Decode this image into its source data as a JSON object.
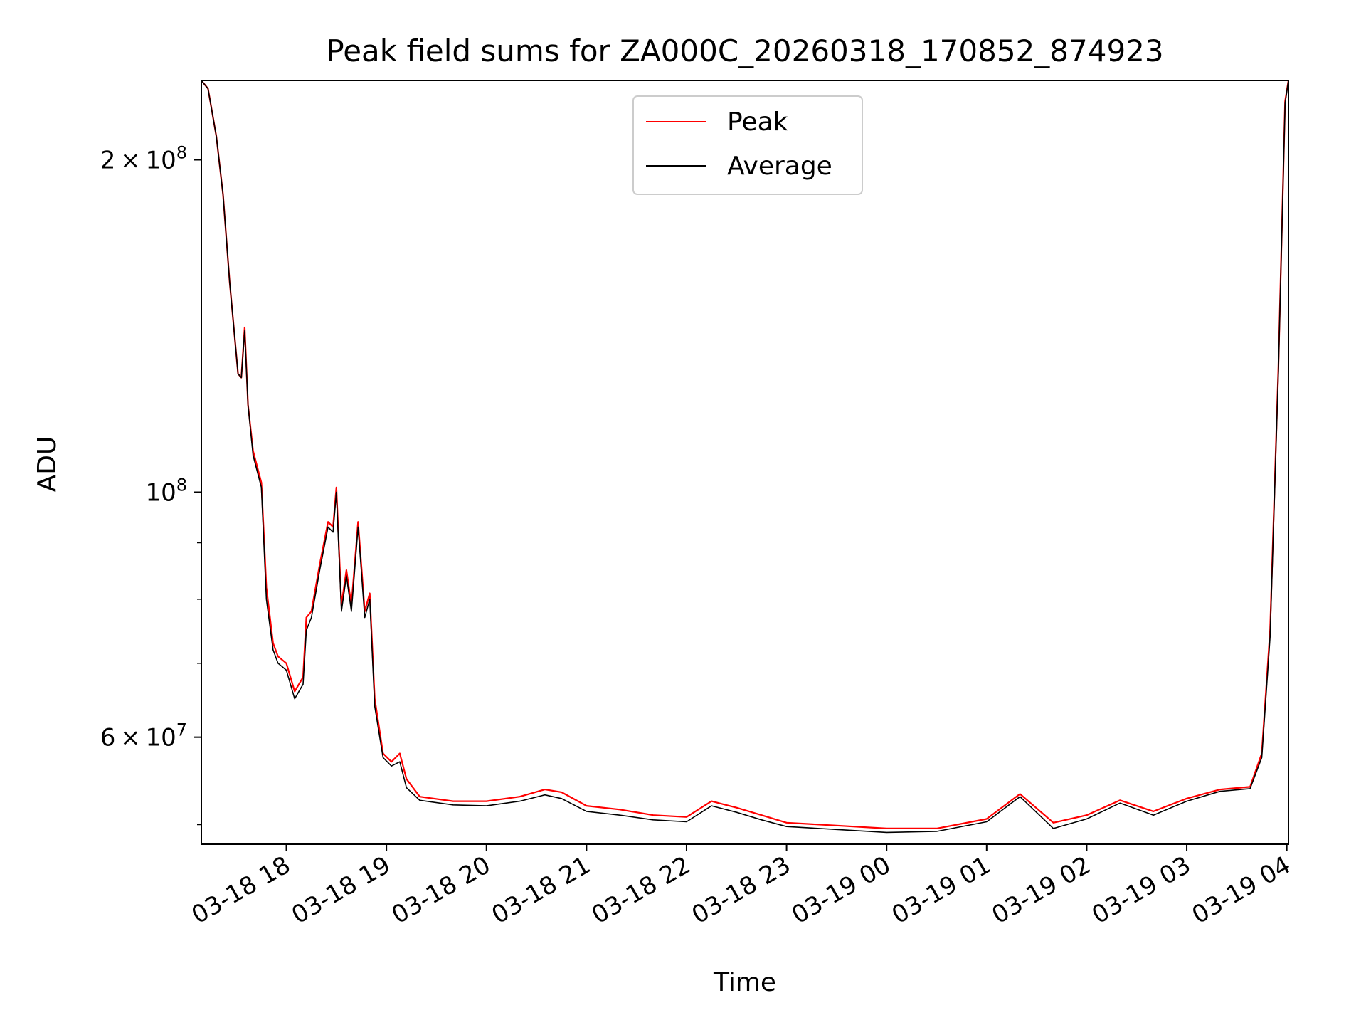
{
  "chart_data": {
    "type": "line",
    "title": "Peak field sums for ZA000C_20260318_170852_874923",
    "xlabel": "Time",
    "ylabel": "ADU",
    "yscale": "log",
    "xlim": [
      "2026-03-18 17:09",
      "2026-03-19 04:01"
    ],
    "ylim": [
      48000000,
      236000000
    ],
    "grid": true,
    "legend": "upper center",
    "x_ticks": [
      {
        "t": "2026-03-18 18:00",
        "label": "03-18 18"
      },
      {
        "t": "2026-03-18 19:00",
        "label": "03-18 19"
      },
      {
        "t": "2026-03-18 20:00",
        "label": "03-18 20"
      },
      {
        "t": "2026-03-18 21:00",
        "label": "03-18 21"
      },
      {
        "t": "2026-03-18 22:00",
        "label": "03-18 22"
      },
      {
        "t": "2026-03-18 23:00",
        "label": "03-18 23"
      },
      {
        "t": "2026-03-19 00:00",
        "label": "03-19 00"
      },
      {
        "t": "2026-03-19 01:00",
        "label": "03-19 01"
      },
      {
        "t": "2026-03-19 02:00",
        "label": "03-19 02"
      },
      {
        "t": "2026-03-19 03:00",
        "label": "03-19 03"
      },
      {
        "t": "2026-03-19 04:00",
        "label": "03-19 04"
      }
    ],
    "y_ticks": [
      {
        "value": 200000000,
        "mant": "2",
        "exp": "8"
      },
      {
        "value": 100000000,
        "mant": "",
        "exp": "8"
      },
      {
        "value": 60000000,
        "mant": "6",
        "exp": "7"
      }
    ],
    "y_minor_ticks": [
      50000000,
      70000000,
      80000000,
      90000000
    ],
    "series": [
      {
        "name": "Peak",
        "color": "#ff0000",
        "points": [
          [
            "2026-03-18 17:09",
            236000000
          ],
          [
            "2026-03-18 17:13",
            232000000
          ],
          [
            "2026-03-18 17:18",
            210000000
          ],
          [
            "2026-03-18 17:22",
            186000000
          ],
          [
            "2026-03-18 17:26",
            155000000
          ],
          [
            "2026-03-18 17:31",
            128000000
          ],
          [
            "2026-03-18 17:33",
            127000000
          ],
          [
            "2026-03-18 17:35",
            141000000
          ],
          [
            "2026-03-18 17:37",
            120000000
          ],
          [
            "2026-03-18 17:40",
            109000000
          ],
          [
            "2026-03-18 17:45",
            102000000
          ],
          [
            "2026-03-18 17:48",
            82000000
          ],
          [
            "2026-03-18 17:52",
            73000000
          ],
          [
            "2026-03-18 17:55",
            71000000
          ],
          [
            "2026-03-18 18:00",
            70000000
          ],
          [
            "2026-03-18 18:05",
            66000000
          ],
          [
            "2026-03-18 18:10",
            68000000
          ],
          [
            "2026-03-18 18:12",
            77000000
          ],
          [
            "2026-03-18 18:15",
            78000000
          ],
          [
            "2026-03-18 18:20",
            86000000
          ],
          [
            "2026-03-18 18:25",
            94000000
          ],
          [
            "2026-03-18 18:28",
            93000000
          ],
          [
            "2026-03-18 18:30",
            101000000
          ],
          [
            "2026-03-18 18:33",
            79000000
          ],
          [
            "2026-03-18 18:36",
            85000000
          ],
          [
            "2026-03-18 18:39",
            79000000
          ],
          [
            "2026-03-18 18:43",
            94000000
          ],
          [
            "2026-03-18 18:47",
            78000000
          ],
          [
            "2026-03-18 18:50",
            81000000
          ],
          [
            "2026-03-18 18:53",
            65000000
          ],
          [
            "2026-03-18 18:58",
            58000000
          ],
          [
            "2026-03-18 19:03",
            57000000
          ],
          [
            "2026-03-18 19:08",
            58000000
          ],
          [
            "2026-03-18 19:12",
            55000000
          ],
          [
            "2026-03-18 19:20",
            53000000
          ],
          [
            "2026-03-18 19:40",
            52500000
          ],
          [
            "2026-03-18 20:00",
            52500000
          ],
          [
            "2026-03-18 20:20",
            53000000
          ],
          [
            "2026-03-18 20:35",
            53800000
          ],
          [
            "2026-03-18 20:45",
            53500000
          ],
          [
            "2026-03-18 21:00",
            52000000
          ],
          [
            "2026-03-18 21:20",
            51600000
          ],
          [
            "2026-03-18 21:40",
            51000000
          ],
          [
            "2026-03-18 22:00",
            50800000
          ],
          [
            "2026-03-18 22:15",
            52500000
          ],
          [
            "2026-03-18 22:30",
            51800000
          ],
          [
            "2026-03-18 22:45",
            51000000
          ],
          [
            "2026-03-18 23:00",
            50200000
          ],
          [
            "2026-03-18 23:30",
            49900000
          ],
          [
            "2026-03-19 00:00",
            49600000
          ],
          [
            "2026-03-19 00:30",
            49600000
          ],
          [
            "2026-03-19 01:00",
            50600000
          ],
          [
            "2026-03-19 01:20",
            53300000
          ],
          [
            "2026-03-19 01:40",
            50200000
          ],
          [
            "2026-03-19 02:00",
            51000000
          ],
          [
            "2026-03-19 02:20",
            52600000
          ],
          [
            "2026-03-19 02:40",
            51400000
          ],
          [
            "2026-03-19 03:00",
            52800000
          ],
          [
            "2026-03-19 03:20",
            53800000
          ],
          [
            "2026-03-19 03:38",
            54100000
          ],
          [
            "2026-03-19 03:45",
            58000000
          ],
          [
            "2026-03-19 03:50",
            75000000
          ],
          [
            "2026-03-19 03:55",
            130000000
          ],
          [
            "2026-03-19 03:59",
            226000000
          ],
          [
            "2026-03-19 04:01",
            236000000
          ]
        ]
      },
      {
        "name": "Average",
        "color": "#000000",
        "points": [
          [
            "2026-03-18 17:09",
            236000000
          ],
          [
            "2026-03-18 17:13",
            232000000
          ],
          [
            "2026-03-18 17:18",
            210000000
          ],
          [
            "2026-03-18 17:22",
            186000000
          ],
          [
            "2026-03-18 17:26",
            155000000
          ],
          [
            "2026-03-18 17:31",
            128000000
          ],
          [
            "2026-03-18 17:33",
            127000000
          ],
          [
            "2026-03-18 17:35",
            140000000
          ],
          [
            "2026-03-18 17:37",
            120000000
          ],
          [
            "2026-03-18 17:40",
            108000000
          ],
          [
            "2026-03-18 17:45",
            101000000
          ],
          [
            "2026-03-18 17:48",
            80000000
          ],
          [
            "2026-03-18 17:52",
            72000000
          ],
          [
            "2026-03-18 17:55",
            70000000
          ],
          [
            "2026-03-18 18:00",
            69000000
          ],
          [
            "2026-03-18 18:05",
            65000000
          ],
          [
            "2026-03-18 18:10",
            67000000
          ],
          [
            "2026-03-18 18:12",
            75000000
          ],
          [
            "2026-03-18 18:15",
            77000000
          ],
          [
            "2026-03-18 18:20",
            85000000
          ],
          [
            "2026-03-18 18:25",
            93000000
          ],
          [
            "2026-03-18 18:28",
            92000000
          ],
          [
            "2026-03-18 18:30",
            100000000
          ],
          [
            "2026-03-18 18:33",
            78000000
          ],
          [
            "2026-03-18 18:36",
            84000000
          ],
          [
            "2026-03-18 18:39",
            78000000
          ],
          [
            "2026-03-18 18:43",
            93000000
          ],
          [
            "2026-03-18 18:47",
            77000000
          ],
          [
            "2026-03-18 18:50",
            80000000
          ],
          [
            "2026-03-18 18:53",
            64000000
          ],
          [
            "2026-03-18 18:58",
            57500000
          ],
          [
            "2026-03-18 19:03",
            56500000
          ],
          [
            "2026-03-18 19:08",
            57000000
          ],
          [
            "2026-03-18 19:12",
            54000000
          ],
          [
            "2026-03-18 19:20",
            52600000
          ],
          [
            "2026-03-18 19:40",
            52100000
          ],
          [
            "2026-03-18 20:00",
            52000000
          ],
          [
            "2026-03-18 20:20",
            52500000
          ],
          [
            "2026-03-18 20:35",
            53200000
          ],
          [
            "2026-03-18 20:45",
            52800000
          ],
          [
            "2026-03-18 21:00",
            51400000
          ],
          [
            "2026-03-18 21:20",
            51000000
          ],
          [
            "2026-03-18 21:40",
            50500000
          ],
          [
            "2026-03-18 22:00",
            50300000
          ],
          [
            "2026-03-18 22:15",
            52000000
          ],
          [
            "2026-03-18 22:30",
            51300000
          ],
          [
            "2026-03-18 22:45",
            50500000
          ],
          [
            "2026-03-18 23:00",
            49800000
          ],
          [
            "2026-03-18 23:30",
            49500000
          ],
          [
            "2026-03-19 00:00",
            49200000
          ],
          [
            "2026-03-19 00:30",
            49300000
          ],
          [
            "2026-03-19 01:00",
            50300000
          ],
          [
            "2026-03-19 01:20",
            53000000
          ],
          [
            "2026-03-19 01:40",
            49600000
          ],
          [
            "2026-03-19 02:00",
            50600000
          ],
          [
            "2026-03-19 02:20",
            52300000
          ],
          [
            "2026-03-19 02:40",
            51000000
          ],
          [
            "2026-03-19 03:00",
            52500000
          ],
          [
            "2026-03-19 03:20",
            53600000
          ],
          [
            "2026-03-19 03:38",
            53900000
          ],
          [
            "2026-03-19 03:45",
            57500000
          ],
          [
            "2026-03-19 03:50",
            74000000
          ],
          [
            "2026-03-19 03:55",
            129000000
          ],
          [
            "2026-03-19 03:59",
            225000000
          ],
          [
            "2026-03-19 04:01",
            236000000
          ]
        ]
      }
    ]
  }
}
